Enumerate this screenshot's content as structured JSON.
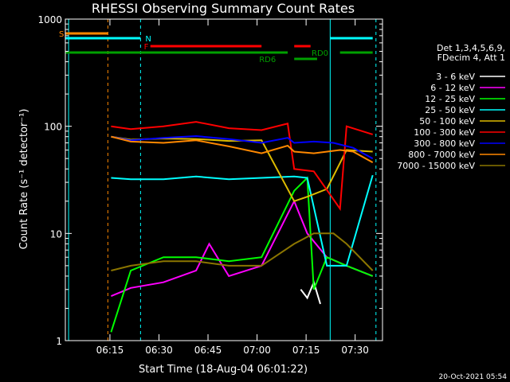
{
  "chart_data": {
    "type": "line",
    "title": "RHESSI Observing Summary Count Rates",
    "xlabel": "Start Time (18-Aug-04 06:01:22)",
    "ylabel": "Count Rate (s⁻¹ detector⁻¹)",
    "x_range_minutes": [
      6.0,
      7.6
    ],
    "yscale": "log",
    "ylim": [
      1,
      1000
    ],
    "x_ticks": [
      "06:15",
      "06:30",
      "06:45",
      "07:00",
      "07:15",
      "07:30"
    ],
    "y_ticks": [
      "1",
      "10",
      "100",
      "1000"
    ],
    "legend_header": [
      "Det 1,3,4,5,6,9,",
      "FDecim 4, Att 1"
    ],
    "timestamp": "20-Oct-2021 05:54",
    "flags": [
      {
        "label": "S",
        "color": "#ff8800",
        "intervals": [
          [
            0,
            13
          ]
        ]
      },
      {
        "label": "N",
        "color": "#00ffff",
        "intervals": [
          [
            0,
            23
          ],
          [
            81,
            94
          ]
        ]
      },
      {
        "label": "F",
        "color": "#ff0000",
        "intervals": [
          [
            26,
            60
          ],
          [
            70,
            75
          ]
        ]
      },
      {
        "label": "RD0",
        "color": "#00a000",
        "intervals": [
          [
            0,
            68
          ],
          [
            84,
            94
          ]
        ]
      },
      {
        "label": "RD6",
        "color": "#00a000",
        "intervals": [
          [
            70,
            77
          ]
        ]
      }
    ],
    "series": [
      {
        "name": "3 - 6 keV",
        "color": "#ffffff",
        "values": [
          [
            72,
            3
          ],
          [
            74,
            2.5
          ],
          [
            76,
            3.5
          ],
          [
            78,
            2.2
          ]
        ]
      },
      {
        "name": "6 - 12 keV",
        "color": "#ff00ff",
        "values": [
          [
            14,
            2.6
          ],
          [
            20,
            3.1
          ],
          [
            30,
            3.5
          ],
          [
            40,
            4.5
          ],
          [
            44,
            8
          ],
          [
            50,
            4
          ],
          [
            60,
            5
          ],
          [
            70,
            20
          ],
          [
            74,
            10
          ],
          [
            80,
            6
          ],
          [
            86,
            5
          ],
          [
            94,
            4
          ]
        ]
      },
      {
        "name": "12 - 25 keV",
        "color": "#00ff00",
        "values": [
          [
            14,
            1.2
          ],
          [
            20,
            4.5
          ],
          [
            30,
            6
          ],
          [
            40,
            6
          ],
          [
            50,
            5.5
          ],
          [
            60,
            6
          ],
          [
            70,
            25
          ],
          [
            74,
            33
          ],
          [
            76,
            3
          ],
          [
            80,
            6
          ],
          [
            86,
            5
          ],
          [
            94,
            4
          ]
        ]
      },
      {
        "name": "25 - 50 keV",
        "color": "#00ffff",
        "values": [
          [
            14,
            33
          ],
          [
            20,
            32
          ],
          [
            30,
            32
          ],
          [
            40,
            34
          ],
          [
            50,
            32
          ],
          [
            60,
            33
          ],
          [
            70,
            34
          ],
          [
            74,
            33
          ],
          [
            80,
            5
          ],
          [
            86,
            5
          ],
          [
            94,
            35
          ]
        ]
      },
      {
        "name": "50 - 100 keV",
        "color": "#ddbb00",
        "values": [
          [
            14,
            80
          ],
          [
            20,
            75
          ],
          [
            30,
            77
          ],
          [
            40,
            76
          ],
          [
            50,
            73
          ],
          [
            60,
            74
          ],
          [
            70,
            20
          ],
          [
            74,
            22
          ],
          [
            80,
            26
          ],
          [
            86,
            60
          ],
          [
            94,
            58
          ]
        ]
      },
      {
        "name": "100 - 300 keV",
        "color": "#ff0000",
        "values": [
          [
            14,
            100
          ],
          [
            20,
            94
          ],
          [
            30,
            100
          ],
          [
            40,
            110
          ],
          [
            50,
            96
          ],
          [
            60,
            92
          ],
          [
            68,
            106
          ],
          [
            70,
            40
          ],
          [
            76,
            38
          ],
          [
            84,
            17
          ],
          [
            86,
            100
          ],
          [
            94,
            84
          ]
        ]
      },
      {
        "name": "300 - 800 keV",
        "color": "#0000ff",
        "values": [
          [
            14,
            80
          ],
          [
            20,
            74
          ],
          [
            30,
            78
          ],
          [
            40,
            81
          ],
          [
            50,
            76
          ],
          [
            60,
            70
          ],
          [
            68,
            78
          ],
          [
            70,
            70
          ],
          [
            76,
            72
          ],
          [
            82,
            70
          ],
          [
            88,
            63
          ],
          [
            94,
            50
          ]
        ]
      },
      {
        "name": "800 - 7000 keV",
        "color": "#ff8800",
        "values": [
          [
            14,
            80
          ],
          [
            20,
            72
          ],
          [
            30,
            70
          ],
          [
            40,
            74
          ],
          [
            50,
            65
          ],
          [
            60,
            56
          ],
          [
            68,
            66
          ],
          [
            70,
            58
          ],
          [
            76,
            56
          ],
          [
            84,
            60
          ],
          [
            88,
            58
          ],
          [
            94,
            46
          ]
        ]
      },
      {
        "name": "7000 - 15000 keV",
        "color": "#8b7500",
        "values": [
          [
            14,
            4.5
          ],
          [
            20,
            5
          ],
          [
            30,
            5.5
          ],
          [
            40,
            5.5
          ],
          [
            50,
            5
          ],
          [
            60,
            5
          ],
          [
            70,
            8
          ],
          [
            76,
            10
          ],
          [
            82,
            10
          ],
          [
            86,
            8
          ],
          [
            94,
            4.5
          ]
        ]
      }
    ],
    "vlines": [
      {
        "x": 1,
        "color": "#00ffff",
        "style": "solid"
      },
      {
        "x": 13,
        "color": "#ff8800",
        "style": "dashed"
      },
      {
        "x": 23,
        "color": "#00ffff",
        "style": "dashed"
      },
      {
        "x": 81,
        "color": "#00ffff",
        "style": "solid"
      },
      {
        "x": 95,
        "color": "#00ffff",
        "style": "dashed"
      }
    ]
  }
}
